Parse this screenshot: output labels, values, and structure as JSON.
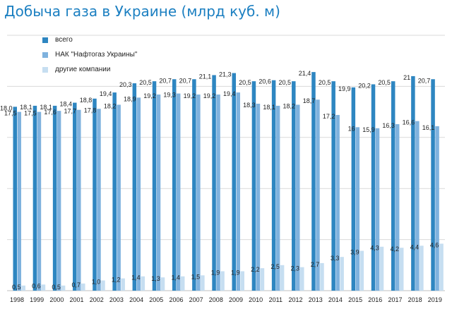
{
  "chart_data": {
    "type": "bar",
    "title": "Добыча газа в Украине (млрд куб. м)",
    "categories": [
      "1998",
      "1999",
      "2000",
      "2001",
      "2002",
      "2003",
      "2004",
      "2005",
      "2006",
      "2007",
      "2008",
      "2009",
      "2010",
      "2011",
      "2012",
      "2013",
      "2014",
      "2015",
      "2016",
      "2017",
      "2018",
      "2019"
    ],
    "series": [
      {
        "name": "всего",
        "color": "#2e86c1",
        "labels": [
          "18,0",
          "18,1",
          "18,1",
          "18,4",
          "18,8",
          "19,4",
          "20,3",
          "20,5",
          "20,7",
          "20,7",
          "21,1",
          "21,3",
          "20,5",
          "20,6",
          "20,5",
          "21,4",
          "20,5",
          "19,9",
          "20,2",
          "20,5",
          "21",
          "20,7"
        ],
        "values": [
          18.0,
          18.1,
          18.1,
          18.4,
          18.8,
          19.4,
          20.3,
          20.5,
          20.7,
          20.7,
          21.1,
          21.3,
          20.5,
          20.6,
          20.5,
          21.4,
          20.5,
          19.9,
          20.2,
          20.5,
          21.0,
          20.7
        ]
      },
      {
        "name": "НАК \"Нафтогаз Украины\"",
        "color": "#7fb2de",
        "labels": [
          "17,5",
          "17,5",
          "17,6",
          "17,7",
          "17,8",
          "18,2",
          "18,9",
          "19,2",
          "19,3",
          "19,2",
          "19,2",
          "19,4",
          "18,3",
          "18,1",
          "18,2",
          "18,7",
          "17,2",
          "16",
          "15,9",
          "16,3",
          "16,6",
          "16,1"
        ],
        "values": [
          17.5,
          17.5,
          17.6,
          17.7,
          17.8,
          18.2,
          18.9,
          19.2,
          19.3,
          19.2,
          19.2,
          19.4,
          18.3,
          18.1,
          18.2,
          18.7,
          17.2,
          16.0,
          15.9,
          16.3,
          16.6,
          16.1
        ]
      },
      {
        "name": "другие компании",
        "color": "#c6def1",
        "labels": [
          "0,5",
          "0,6",
          "0,5",
          "0,7",
          "1,0",
          "1,2",
          "1,4",
          "1,3",
          "1,4",
          "1,5",
          "1,9",
          "1,9",
          "2,2",
          "2,5",
          "2,3",
          "2,7",
          "3,3",
          "3,9",
          "4,3",
          "4,2",
          "4,4",
          "4,6"
        ],
        "values": [
          0.5,
          0.6,
          0.5,
          0.7,
          1.0,
          1.2,
          1.4,
          1.3,
          1.4,
          1.5,
          1.9,
          1.9,
          2.2,
          2.5,
          2.3,
          2.7,
          3.3,
          3.9,
          4.3,
          4.2,
          4.4,
          4.6
        ]
      }
    ],
    "ylim": [
      0,
      25
    ],
    "grid": true,
    "legend_position": "top-left"
  }
}
